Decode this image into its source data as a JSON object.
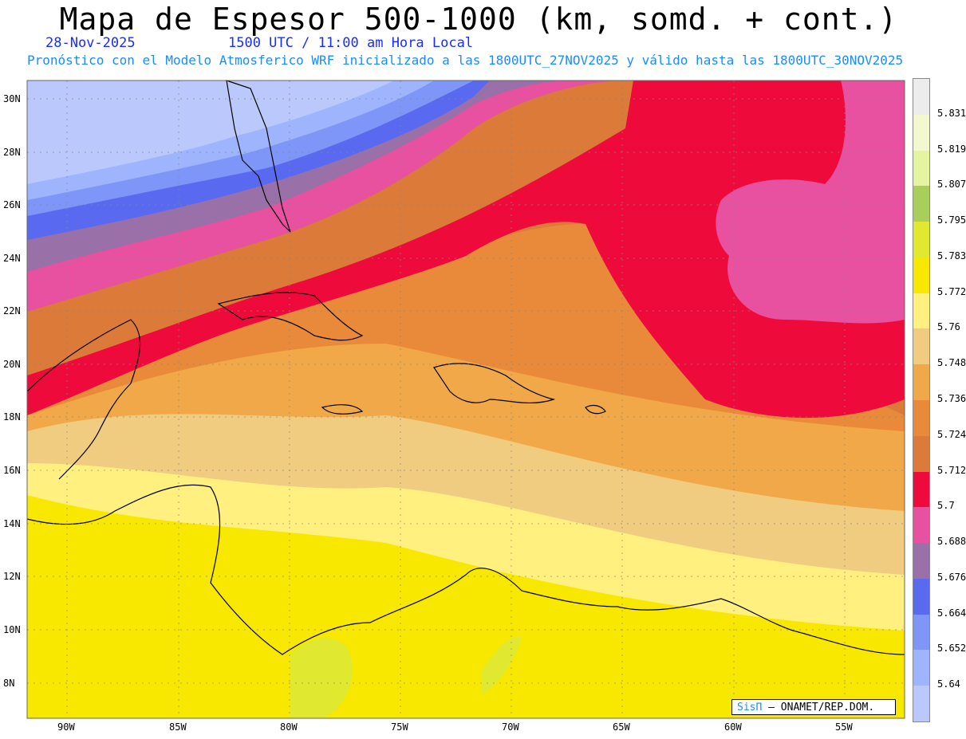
{
  "header": {
    "title": "Mapa de Espesor 500-1000 (km, somd. + cont.)",
    "date": "28-Nov-2025",
    "time": "1500 UTC / 11:00 am Hora Local",
    "info": "Pronóstico con el Modelo Atmosferico WRF inicializado a las 1800UTC_27NOV2025 y válido hasta las  1800UTC_30NOV2025"
  },
  "map": {
    "lat_labels": [
      "30N",
      "28N",
      "26N",
      "24N",
      "22N",
      "20N",
      "18N",
      "16N",
      "14N",
      "12N",
      "10N",
      "8N"
    ],
    "lon_labels": [
      "90W",
      "85W",
      "80W",
      "75W",
      "70W",
      "65W",
      "60W",
      "55W"
    ]
  },
  "legend": {
    "labels": [
      "5.831",
      "5.819",
      "5.807",
      "5.795",
      "5.783",
      "5.772",
      "5.76",
      "5.748",
      "5.736",
      "5.724",
      "5.712",
      "5.7",
      "5.688",
      "5.676",
      "5.664",
      "5.652",
      "5.64"
    ],
    "colors": [
      "#ececec",
      "#f4f8cf",
      "#e4f4a0",
      "#a8cf5c",
      "#e0e830",
      "#f8e800",
      "#fff080",
      "#f0cc80",
      "#f0a848",
      "#e88a3a",
      "#dc7a3a",
      "#ee0a3a",
      "#e850a0",
      "#9a70a8",
      "#5a6af0",
      "#7e96f8",
      "#9eb4fc",
      "#bac8fc"
    ]
  },
  "credit": {
    "brand": "SisΠ",
    "text": "– ONAMET/REP.DOM."
  }
}
